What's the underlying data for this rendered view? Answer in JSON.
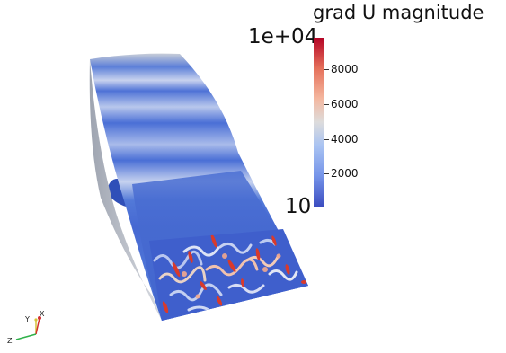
{
  "legend": {
    "title": "grad U magnitude",
    "max_label": "1e+04",
    "min_label": "10",
    "ticks": [
      "8000",
      "6000",
      "4000",
      "2000"
    ],
    "colormap": [
      "#b40426",
      "#e5705a",
      "#f4b79f",
      "#dddcdc",
      "#a9c3f2",
      "#7594e9",
      "#3b4cc0"
    ]
  },
  "axes": {
    "y": "Y",
    "x": "X",
    "z": "Z"
  },
  "colors": {
    "surface_base": "#4a6fd6",
    "surface_light": "#c9d4ec",
    "hot": "#d83a2c"
  }
}
